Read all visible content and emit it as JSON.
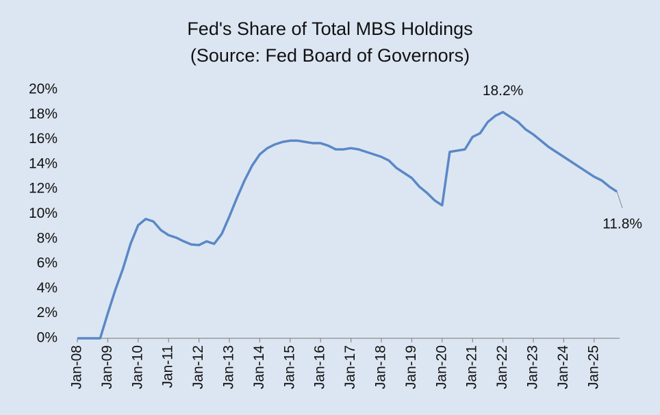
{
  "chart_data": {
    "type": "line",
    "title": "Fed's Share of Total MBS Holdings",
    "subtitle": "(Source: Fed Board of Governors)",
    "categories": [
      "Jan-08",
      null,
      null,
      null,
      "Jan-09",
      null,
      null,
      null,
      "Jan-10",
      null,
      null,
      null,
      "Jan-11",
      null,
      null,
      null,
      "Jan-12",
      null,
      null,
      null,
      "Jan-13",
      null,
      null,
      null,
      "Jan-14",
      null,
      null,
      null,
      "Jan-15",
      null,
      null,
      null,
      "Jan-16",
      null,
      null,
      null,
      "Jan-17",
      null,
      null,
      null,
      "Jan-18",
      null,
      null,
      null,
      "Jan-19",
      null,
      null,
      null,
      "Jan-20",
      null,
      null,
      null,
      "Jan-21",
      null,
      null,
      null,
      "Jan-22",
      null,
      null,
      null,
      "Jan-23",
      null,
      null,
      null,
      "Jan-24",
      null,
      null,
      null,
      "Jan-25",
      null,
      null,
      null
    ],
    "series": [
      {
        "color": "#5a88c6",
        "values": [
          0,
          0,
          0,
          0,
          2.0,
          3.9,
          5.6,
          7.6,
          9.1,
          9.6,
          9.4,
          8.7,
          8.3,
          8.1,
          7.8,
          7.55,
          7.5,
          7.8,
          7.6,
          8.4,
          9.8,
          11.3,
          12.7,
          13.9,
          14.8,
          15.3,
          15.6,
          15.8,
          15.9,
          15.9,
          15.8,
          15.7,
          15.7,
          15.5,
          15.2,
          15.2,
          15.3,
          15.2,
          15.0,
          14.8,
          14.6,
          14.3,
          13.7,
          13.3,
          12.9,
          12.2,
          11.7,
          11.1,
          10.7,
          15.0,
          15.1,
          15.2,
          16.2,
          16.5,
          17.4,
          17.9,
          18.2,
          17.8,
          17.4,
          16.8,
          16.4,
          15.9,
          15.4,
          15.0,
          14.6,
          14.2,
          13.8,
          13.4,
          13.0,
          12.7,
          12.2,
          11.8
        ],
        "value_labels": [
          null,
          null,
          null,
          null,
          null,
          null,
          null,
          null,
          null,
          null,
          null,
          null,
          null,
          null,
          null,
          null,
          null,
          null,
          null,
          null,
          null,
          null,
          null,
          null,
          null,
          null,
          null,
          null,
          null,
          null,
          null,
          null,
          null,
          null,
          null,
          null,
          null,
          null,
          null,
          null,
          null,
          null,
          null,
          null,
          null,
          null,
          null,
          null,
          null,
          null,
          null,
          null,
          null,
          null,
          null,
          null,
          "18.2%",
          null,
          null,
          null,
          null,
          null,
          null,
          null,
          null,
          null,
          null,
          null,
          null,
          null,
          null,
          "11.8%"
        ]
      }
    ],
    "ylim": [
      0,
      20
    ],
    "yticks": [
      {
        "value": 0,
        "label": "0%"
      },
      {
        "value": 2,
        "label": "2%"
      },
      {
        "value": 4,
        "label": "4%"
      },
      {
        "value": 6,
        "label": "6%"
      },
      {
        "value": 8,
        "label": "8%"
      },
      {
        "value": 10,
        "label": "10%"
      },
      {
        "value": 12,
        "label": "12%"
      },
      {
        "value": 14,
        "label": "14%"
      },
      {
        "value": 16,
        "label": "16%"
      },
      {
        "value": 18,
        "label": "18%"
      },
      {
        "value": 20,
        "label": "20%"
      }
    ],
    "grid": false
  }
}
